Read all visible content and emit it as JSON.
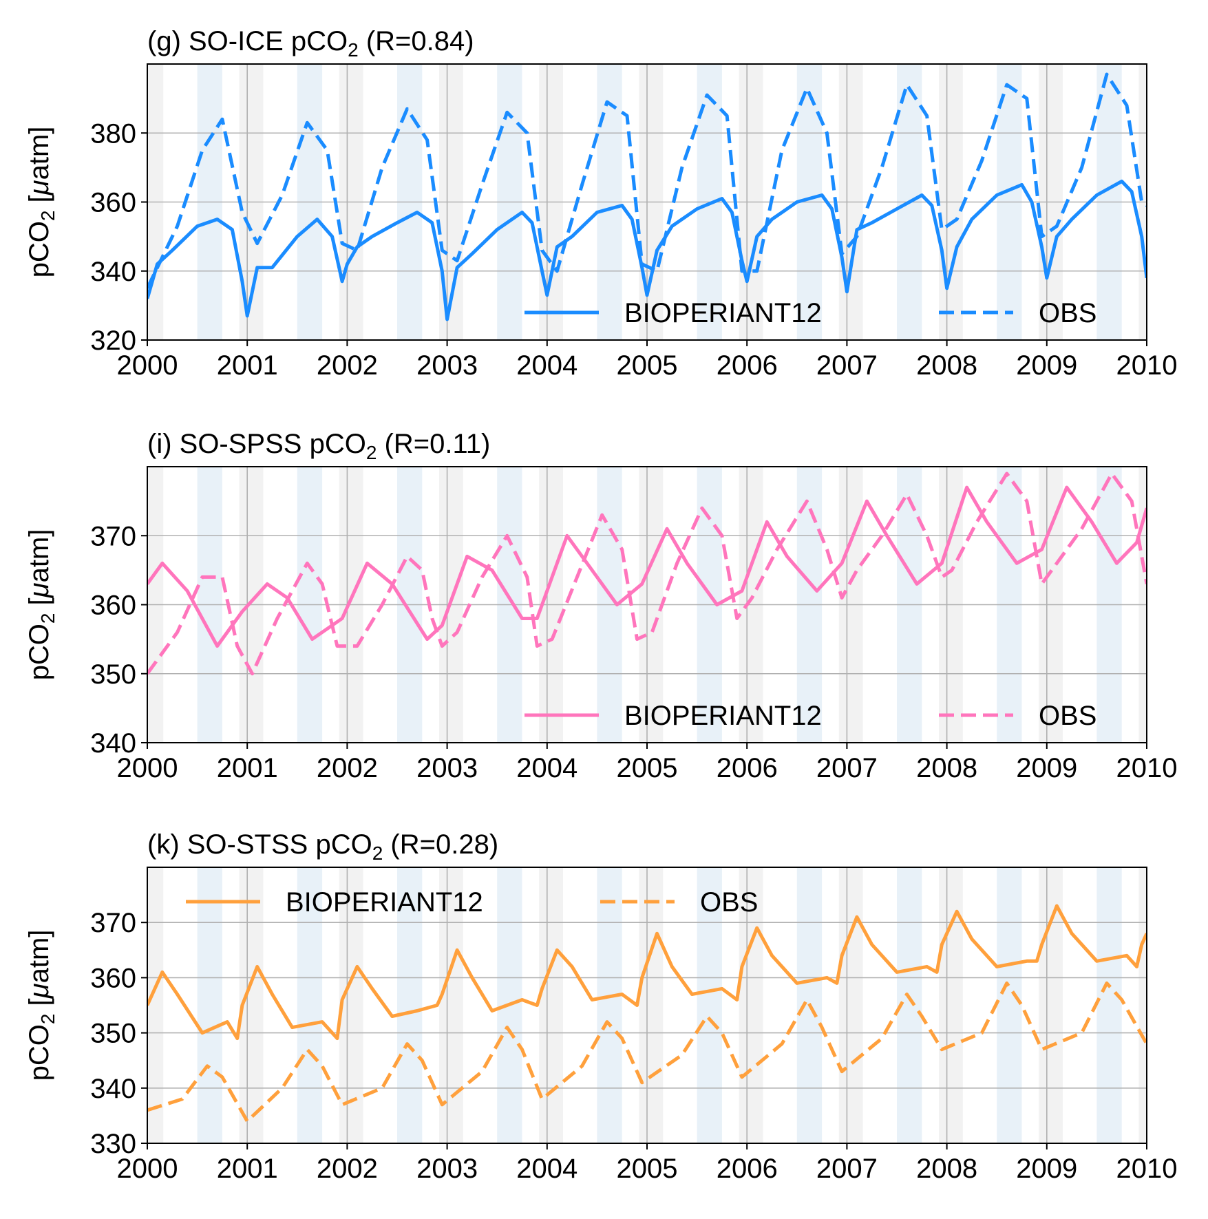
{
  "chart_data": [
    {
      "type": "line",
      "title_main": "(g) SO-ICE pCO",
      "title_sub": "2",
      "title_end": " (R=0.84)",
      "ylabel_main": "pCO",
      "ylabel_sub": "2",
      "ylabel_unit_open": " [",
      "ylabel_mu": "μ",
      "ylabel_unit_close": "atm]",
      "color": "#1a8cff",
      "xlim": [
        2000,
        2010
      ],
      "ylim": [
        320,
        400
      ],
      "xticks": [
        "2000",
        "2001",
        "2002",
        "2003",
        "2004",
        "2005",
        "2006",
        "2007",
        "2008",
        "2009",
        "2010"
      ],
      "yticks": [
        "320",
        "340",
        "360",
        "380"
      ],
      "grid": true,
      "legend_position": "lower-right",
      "series": [
        {
          "name": "BIOPERIANT12",
          "style": "solid",
          "x": [
            2000.0,
            2000.1,
            2000.25,
            2000.5,
            2000.7,
            2000.85,
            2000.95,
            2001.0,
            2001.1,
            2001.25,
            2001.5,
            2001.7,
            2001.85,
            2001.95,
            2002.0,
            2002.1,
            2002.25,
            2002.5,
            2002.7,
            2002.85,
            2002.95,
            2003.0,
            2003.1,
            2003.25,
            2003.5,
            2003.75,
            2003.85,
            2003.95,
            2004.0,
            2004.1,
            2004.25,
            2004.5,
            2004.75,
            2004.85,
            2004.95,
            2005.0,
            2005.1,
            2005.25,
            2005.5,
            2005.75,
            2005.85,
            2005.95,
            2006.0,
            2006.1,
            2006.25,
            2006.5,
            2006.75,
            2006.85,
            2006.95,
            2007.0,
            2007.1,
            2007.25,
            2007.5,
            2007.75,
            2007.85,
            2007.95,
            2008.0,
            2008.1,
            2008.25,
            2008.5,
            2008.75,
            2008.85,
            2008.95,
            2009.0,
            2009.1,
            2009.25,
            2009.5,
            2009.75,
            2009.85,
            2009.95,
            2010.0
          ],
          "values": [
            332,
            342,
            346,
            353,
            355,
            352,
            337,
            327,
            341,
            341,
            350,
            355,
            350,
            337,
            342,
            347,
            350,
            354,
            357,
            354,
            340,
            326,
            341,
            345,
            352,
            357,
            354,
            340,
            333,
            347,
            350,
            357,
            359,
            355,
            341,
            333,
            346,
            353,
            358,
            361,
            357,
            343,
            337,
            350,
            355,
            360,
            362,
            358,
            344,
            334,
            352,
            354,
            358,
            362,
            359,
            346,
            335,
            347,
            355,
            362,
            365,
            360,
            347,
            338,
            350,
            355,
            362,
            366,
            363,
            350,
            338
          ]
        },
        {
          "name": "OBS",
          "style": "dashed",
          "x": [
            2000.0,
            2000.3,
            2000.55,
            2000.75,
            2000.95,
            2001.1,
            2001.35,
            2001.6,
            2001.8,
            2001.95,
            2002.1,
            2002.35,
            2002.6,
            2002.8,
            2002.95,
            2003.1,
            2003.35,
            2003.6,
            2003.8,
            2003.95,
            2004.1,
            2004.35,
            2004.6,
            2004.8,
            2004.95,
            2005.1,
            2005.35,
            2005.6,
            2005.8,
            2005.95,
            2006.1,
            2006.35,
            2006.6,
            2006.8,
            2006.95,
            2007.1,
            2007.35,
            2007.6,
            2007.8,
            2007.95,
            2008.1,
            2008.35,
            2008.6,
            2008.8,
            2008.95,
            2009.1,
            2009.35,
            2009.6,
            2009.8,
            2009.95,
            2010.0
          ],
          "values": [
            335,
            353,
            375,
            384,
            357,
            348,
            362,
            383,
            375,
            348,
            346,
            370,
            387,
            378,
            346,
            343,
            365,
            386,
            380,
            346,
            340,
            365,
            389,
            385,
            342,
            340,
            370,
            391,
            385,
            340,
            340,
            375,
            393,
            380,
            345,
            350,
            370,
            394,
            385,
            352,
            355,
            372,
            394,
            390,
            350,
            353,
            370,
            397,
            388,
            360,
            359
          ]
        }
      ]
    },
    {
      "type": "line",
      "title_main": "(i) SO-SPSS pCO",
      "title_sub": "2",
      "title_end": " (R=0.11)",
      "ylabel_main": "pCO",
      "ylabel_sub": "2",
      "ylabel_unit_open": " [",
      "ylabel_mu": "μ",
      "ylabel_unit_close": "atm]",
      "color": "#ff75bc",
      "xlim": [
        2000,
        2010
      ],
      "ylim": [
        340,
        380
      ],
      "xticks": [
        "2000",
        "2001",
        "2002",
        "2003",
        "2004",
        "2005",
        "2006",
        "2007",
        "2008",
        "2009",
        "2010"
      ],
      "yticks": [
        "340",
        "350",
        "360",
        "370"
      ],
      "grid": true,
      "legend_position": "lower-right",
      "series": [
        {
          "name": "BIOPERIANT12",
          "style": "solid",
          "x": [
            2000.0,
            2000.15,
            2000.4,
            2000.7,
            2000.95,
            2001.2,
            2001.4,
            2001.65,
            2001.95,
            2002.2,
            2002.45,
            2002.8,
            2002.95,
            2003.2,
            2003.45,
            2003.75,
            2003.9,
            2004.2,
            2004.4,
            2004.7,
            2004.95,
            2005.2,
            2005.4,
            2005.7,
            2005.95,
            2006.2,
            2006.4,
            2006.7,
            2006.95,
            2007.2,
            2007.4,
            2007.7,
            2007.95,
            2008.2,
            2008.4,
            2008.7,
            2008.95,
            2009.2,
            2009.45,
            2009.7,
            2009.9,
            2010.0
          ],
          "values": [
            363,
            366,
            362,
            354,
            359,
            363,
            361,
            355,
            358,
            366,
            363,
            355,
            357,
            367,
            365,
            358,
            358,
            370,
            366,
            360,
            363,
            371,
            366,
            360,
            362,
            372,
            367,
            362,
            366,
            375,
            370,
            363,
            366,
            377,
            372,
            366,
            368,
            377,
            372,
            366,
            369,
            374
          ]
        },
        {
          "name": "OBS",
          "style": "dashed",
          "x": [
            2000.0,
            2000.3,
            2000.55,
            2000.75,
            2000.9,
            2001.05,
            2001.3,
            2001.6,
            2001.75,
            2001.9,
            2002.1,
            2002.35,
            2002.6,
            2002.75,
            2002.85,
            2002.95,
            2003.1,
            2003.35,
            2003.6,
            2003.8,
            2003.9,
            2004.05,
            2004.3,
            2004.55,
            2004.75,
            2004.9,
            2005.05,
            2005.3,
            2005.55,
            2005.75,
            2005.9,
            2006.05,
            2006.3,
            2006.6,
            2006.8,
            2006.95,
            2007.1,
            2007.35,
            2007.6,
            2007.8,
            2007.95,
            2008.05,
            2008.3,
            2008.6,
            2008.8,
            2008.95,
            2009.1,
            2009.35,
            2009.65,
            2009.85,
            2010.0
          ],
          "values": [
            350,
            356,
            364,
            364,
            354,
            350,
            358,
            366,
            363,
            354,
            354,
            360,
            367,
            365,
            358,
            354,
            356,
            364,
            370,
            364,
            354,
            355,
            364,
            373,
            368,
            355,
            356,
            366,
            374,
            370,
            358,
            361,
            368,
            375,
            368,
            361,
            365,
            370,
            376,
            370,
            364,
            365,
            372,
            379,
            375,
            363,
            366,
            371,
            379,
            375,
            363
          ]
        }
      ]
    },
    {
      "type": "line",
      "title_main": "(k) SO-STSS pCO",
      "title_sub": "2",
      "title_end": " (R=0.28)",
      "ylabel_main": "pCO",
      "ylabel_sub": "2",
      "ylabel_unit_open": " [",
      "ylabel_mu": "μ",
      "ylabel_unit_close": "atm]",
      "color": "#ffa03c",
      "xlim": [
        2000,
        2010
      ],
      "ylim": [
        330,
        380
      ],
      "xticks": [
        "2000",
        "2001",
        "2002",
        "2003",
        "2004",
        "2005",
        "2006",
        "2007",
        "2008",
        "2009",
        "2010"
      ],
      "yticks": [
        "330",
        "340",
        "350",
        "360",
        "370"
      ],
      "grid": true,
      "legend_position": "top-left",
      "series": [
        {
          "name": "BIOPERIANT12",
          "style": "solid",
          "x": [
            2000.0,
            2000.15,
            2000.3,
            2000.55,
            2000.8,
            2000.9,
            2000.95,
            2001.1,
            2001.25,
            2001.45,
            2001.75,
            2001.9,
            2001.95,
            2002.1,
            2002.25,
            2002.45,
            2002.7,
            2002.9,
            2002.95,
            2003.1,
            2003.25,
            2003.45,
            2003.75,
            2003.9,
            2003.95,
            2004.1,
            2004.25,
            2004.45,
            2004.75,
            2004.9,
            2004.95,
            2005.1,
            2005.25,
            2005.45,
            2005.75,
            2005.9,
            2005.95,
            2006.1,
            2006.25,
            2006.5,
            2006.8,
            2006.9,
            2006.95,
            2007.1,
            2007.25,
            2007.5,
            2007.8,
            2007.9,
            2007.95,
            2008.1,
            2008.25,
            2008.5,
            2008.8,
            2008.9,
            2008.95,
            2009.1,
            2009.25,
            2009.5,
            2009.8,
            2009.9,
            2009.95,
            2010.0
          ],
          "values": [
            355,
            361,
            357,
            350,
            352,
            349,
            355,
            362,
            357,
            351,
            352,
            349,
            356,
            362,
            358,
            353,
            354,
            355,
            357,
            365,
            360,
            354,
            356,
            355,
            358,
            365,
            362,
            356,
            357,
            355,
            360,
            368,
            362,
            357,
            358,
            356,
            362,
            369,
            364,
            359,
            360,
            359,
            364,
            371,
            366,
            361,
            362,
            361,
            366,
            372,
            367,
            362,
            363,
            363,
            366,
            373,
            368,
            363,
            364,
            362,
            366,
            368
          ]
        },
        {
          "name": "OBS",
          "style": "dashed",
          "x": [
            2000.0,
            2000.35,
            2000.6,
            2000.75,
            2001.0,
            2001.35,
            2001.6,
            2001.75,
            2001.95,
            2002.35,
            2002.6,
            2002.75,
            2002.95,
            2003.35,
            2003.6,
            2003.75,
            2003.95,
            2004.35,
            2004.6,
            2004.75,
            2004.95,
            2005.35,
            2005.6,
            2005.75,
            2005.95,
            2006.35,
            2006.6,
            2006.75,
            2006.95,
            2007.35,
            2007.6,
            2007.75,
            2007.95,
            2008.35,
            2008.6,
            2008.75,
            2008.95,
            2009.35,
            2009.6,
            2009.75,
            2010.0
          ],
          "values": [
            336,
            338,
            344,
            342,
            334,
            340,
            347,
            344,
            337,
            340,
            348,
            345,
            337,
            343,
            351,
            347,
            338,
            344,
            352,
            349,
            341,
            346,
            353,
            350,
            342,
            348,
            356,
            351,
            343,
            349,
            357,
            353,
            347,
            350,
            359,
            355,
            347,
            350,
            359,
            356,
            348
          ]
        }
      ]
    }
  ]
}
